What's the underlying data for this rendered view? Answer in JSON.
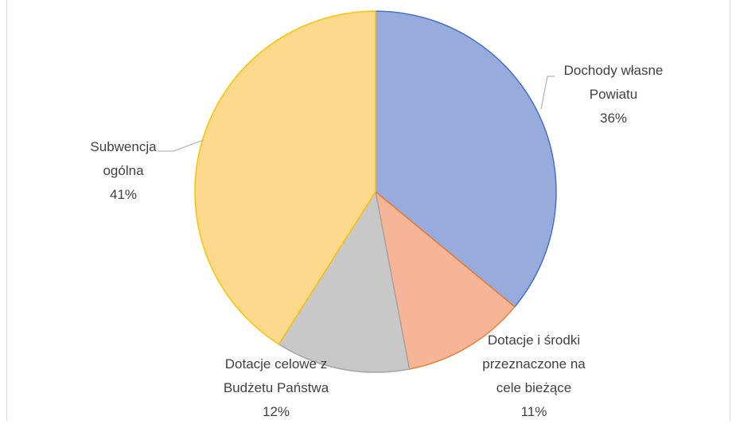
{
  "chart_data": {
    "type": "pie",
    "categories": [
      "Dochody własne Powiatu",
      "Dotacje i środki przeznaczone na cele bieżące",
      "Dotacje celowe z Budżetu Państwa",
      "Subwencja ogólna"
    ],
    "values": [
      36,
      11,
      12,
      41
    ],
    "value_labels": [
      "36%",
      "11%",
      "12%",
      "41%"
    ],
    "colors": [
      "#97acdd",
      "#f6b597",
      "#c8c8c8",
      "#fdd98d"
    ],
    "edge_colors": [
      "#4472c4",
      "#ed7d31",
      "#a5a5a5",
      "#ffc000"
    ]
  }
}
